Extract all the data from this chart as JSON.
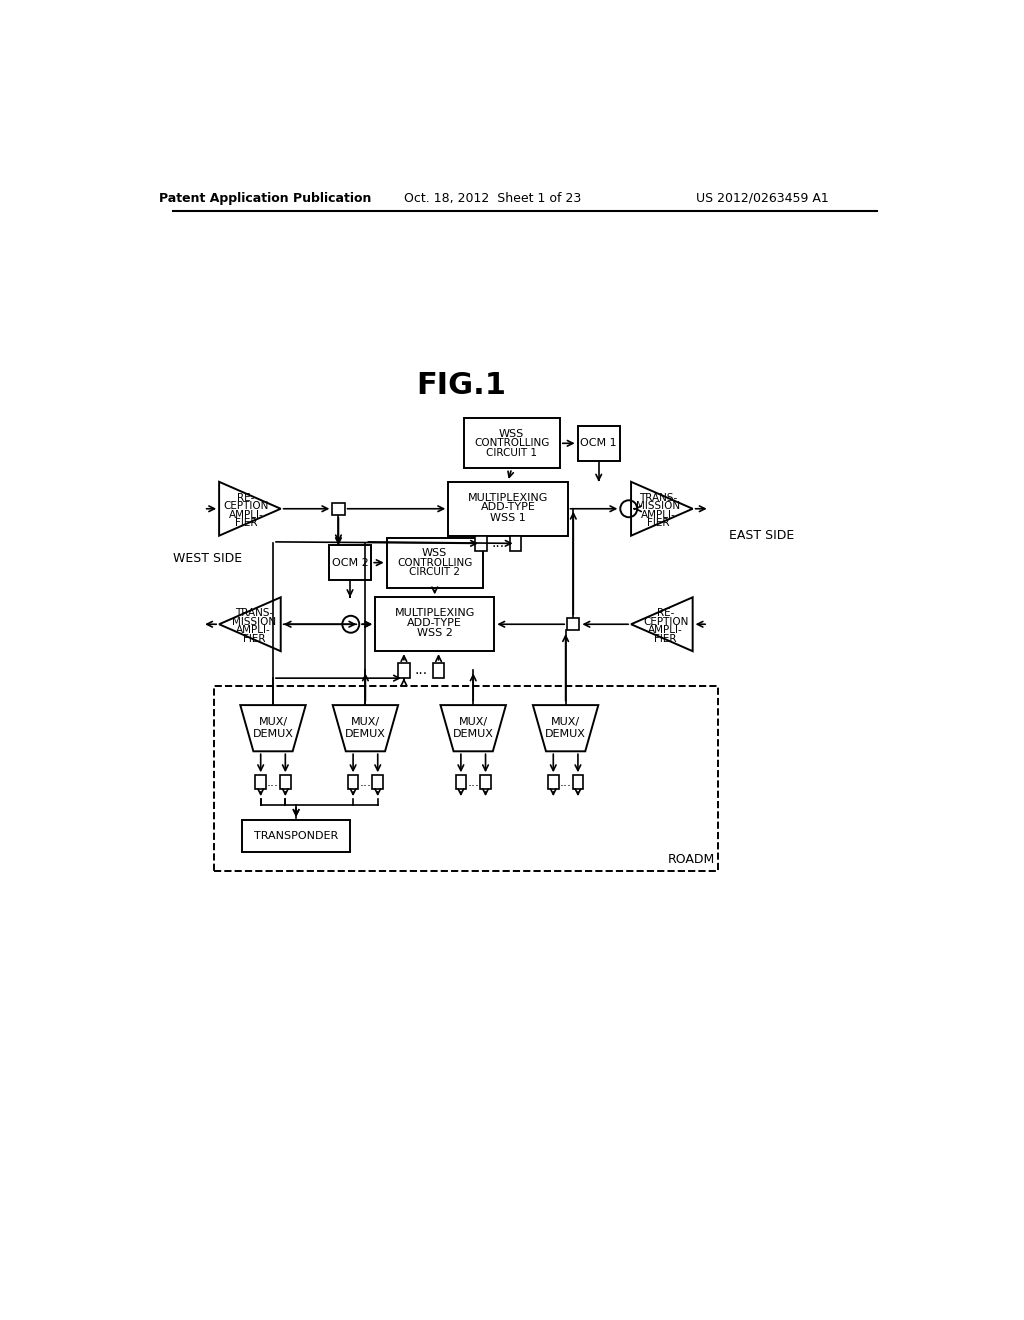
{
  "title": "FIG.1",
  "header_left": "Patent Application Publication",
  "header_center": "Oct. 18, 2012  Sheet 1 of 23",
  "header_right": "US 2012/0263459 A1",
  "bg_color": "#ffffff"
}
